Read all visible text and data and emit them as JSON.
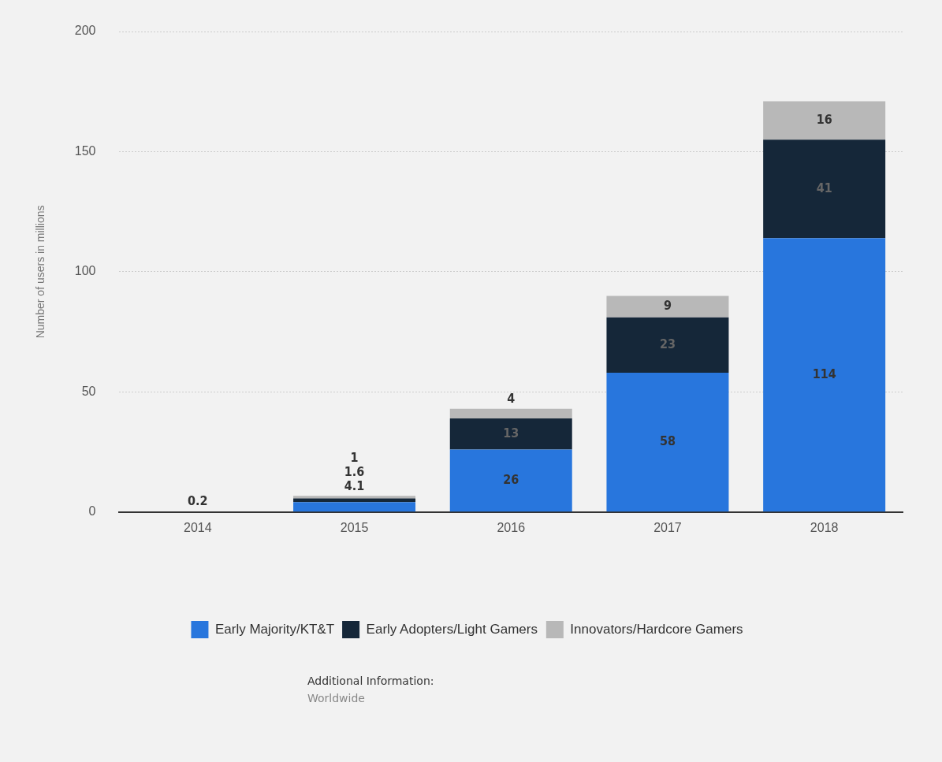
{
  "chart_data": {
    "type": "bar",
    "stacked": true,
    "ylabel": "Number of users in millions",
    "categories": [
      "2014",
      "2015",
      "2016",
      "2017",
      "2018"
    ],
    "series": [
      {
        "name": "Early Majority/KT&T",
        "color": "#2876dd",
        "values": [
          0,
          4.1,
          26,
          58,
          114
        ],
        "value_labels": [
          null,
          "4.1",
          "26",
          "58",
          "114"
        ]
      },
      {
        "name": "Early Adopters/Light Gamers",
        "color": "#152739",
        "values": [
          0,
          1.6,
          13,
          23,
          41
        ],
        "value_labels": [
          null,
          "1.6",
          "13",
          "23",
          "41"
        ]
      },
      {
        "name": "Innovators/Hardcore Gamers",
        "color": "#b8b8b8",
        "values": [
          0.2,
          1,
          4,
          9,
          16
        ],
        "value_labels": [
          "0.2",
          "1",
          "4",
          "9",
          "16"
        ]
      }
    ],
    "ylim": [
      0,
      200
    ],
    "yticks": [
      0,
      50,
      100,
      150,
      200
    ],
    "grid": "y",
    "legend": "bottom",
    "annotations": [
      "Additional Information:",
      "Worldwide"
    ]
  }
}
